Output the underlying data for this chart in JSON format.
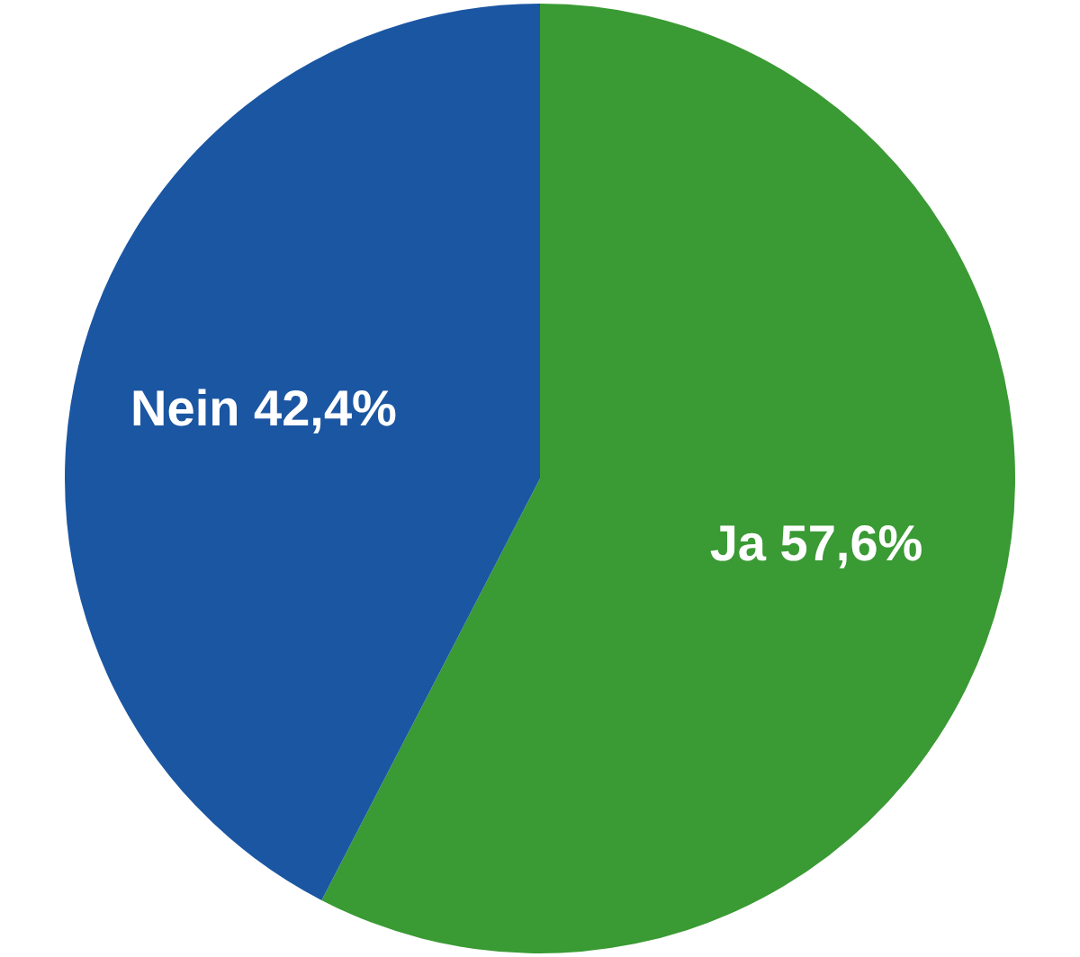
{
  "chart_data": {
    "type": "pie",
    "categories": [
      "Ja",
      "Nein"
    ],
    "values": [
      57.6,
      42.4
    ],
    "value_labels": [
      "57,6%",
      "42,4%"
    ],
    "colors": [
      "#3a9a34",
      "#1b56a2"
    ]
  }
}
